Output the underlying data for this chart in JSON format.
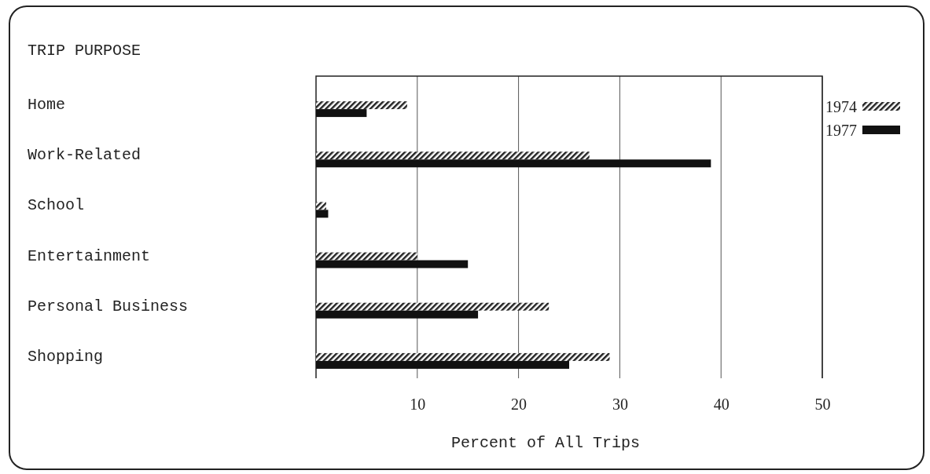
{
  "chart_data": {
    "type": "bar",
    "orientation": "horizontal",
    "ylabel": "TRIP PURPOSE",
    "xlabel": "Percent of All Trips",
    "categories": [
      "Home",
      "Work-Related",
      "School",
      "Entertainment",
      "Personal Business",
      "Shopping"
    ],
    "series": [
      {
        "name": "1974",
        "color": "#222222",
        "values": [
          9,
          27,
          1,
          10,
          23,
          29
        ]
      },
      {
        "name": "1977",
        "color": "#111111",
        "values": [
          5,
          39,
          1.2,
          15,
          16,
          25
        ]
      }
    ],
    "xlim": [
      0,
      50
    ],
    "xticks": [
      10,
      20,
      30,
      40,
      50
    ],
    "grid": "x",
    "legend": "right"
  }
}
